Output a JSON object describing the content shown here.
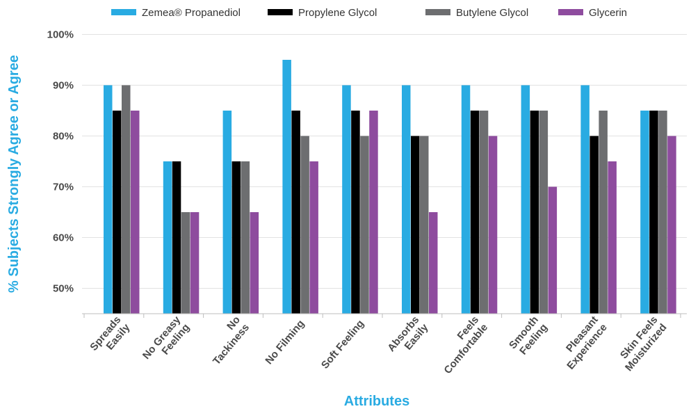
{
  "chart_data": {
    "type": "bar",
    "title": "",
    "xlabel": "Attributes",
    "ylabel": "% Subjects Strongly Agree or Agree",
    "ylim": [
      45,
      100
    ],
    "yticks": [
      50,
      60,
      70,
      80,
      90,
      100
    ],
    "ytick_labels": [
      "50%",
      "60%",
      "70%",
      "80%",
      "90%",
      "100%"
    ],
    "grid": true,
    "legend_position": "top",
    "categories": [
      [
        "Spreads",
        "Easily"
      ],
      [
        "No Greasy",
        "Feeling"
      ],
      [
        "No",
        "Tackiness"
      ],
      [
        "No Filming"
      ],
      [
        "Soft Feeling"
      ],
      [
        "Absorbs",
        "Easily"
      ],
      [
        "Feels",
        "Comfortable"
      ],
      [
        "Smooth",
        "Feeling"
      ],
      [
        "Pleasant",
        "Experience"
      ],
      [
        "Skin Feels",
        "Moisturized"
      ]
    ],
    "series": [
      {
        "name": "Zemea® Propanediol",
        "color": "#29abe2",
        "values": [
          90,
          75,
          85,
          95,
          90,
          90,
          90,
          90,
          90,
          85
        ]
      },
      {
        "name": "Propylene Glycol",
        "color": "#000000",
        "values": [
          85,
          75,
          75,
          85,
          85,
          80,
          85,
          85,
          80,
          85
        ]
      },
      {
        "name": "Butylene Glycol",
        "color": "#6d6e70",
        "values": [
          90,
          65,
          75,
          80,
          80,
          80,
          85,
          85,
          85,
          85
        ]
      },
      {
        "name": "Glycerin",
        "color": "#8e4c9e",
        "values": [
          85,
          65,
          65,
          75,
          85,
          65,
          80,
          70,
          75,
          80
        ]
      }
    ],
    "colors": {
      "ylabel": "#29abe2",
      "xlabel": "#29abe2",
      "grid": "#e2e2e2",
      "ticks": "#4a4a4a"
    }
  }
}
